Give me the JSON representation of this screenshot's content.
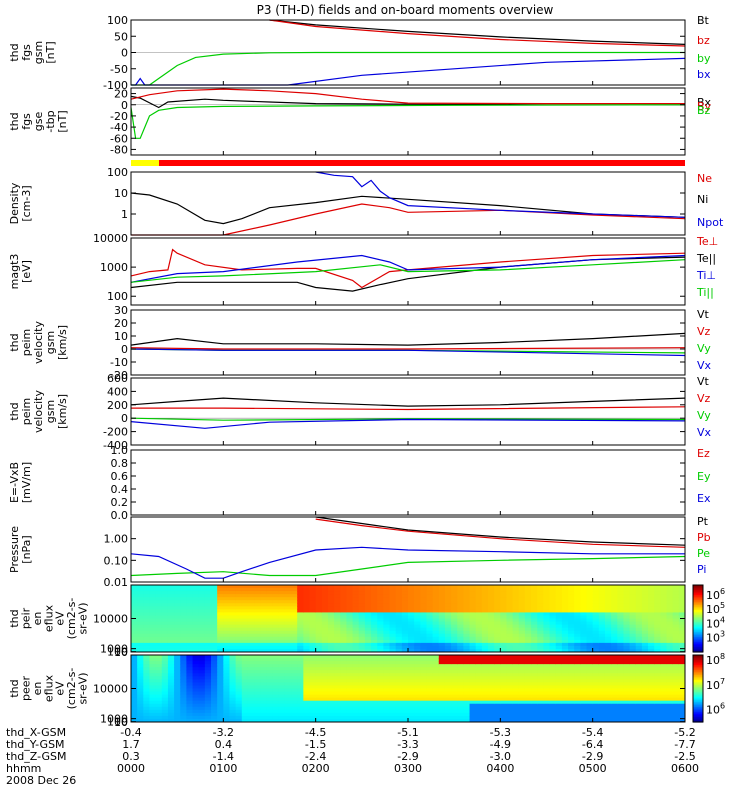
{
  "title": "P3 (TH-D) fields and on-board moments overview",
  "colors": {
    "black": "#000000",
    "red": "#dd0000",
    "green": "#00cc00",
    "blue": "#0000dd",
    "yellow": "#ffff00",
    "bar_red": "#ff0000"
  },
  "chart_data": [
    {
      "id": "fgs_gsm",
      "type": "line",
      "ylabel": [
        "thd",
        "fgs",
        "gsm",
        "[nT]"
      ],
      "ylim": [
        -100,
        100
      ],
      "yticks": [
        -100,
        -50,
        0,
        50,
        100
      ],
      "legend": [
        {
          "name": "Bt",
          "color": "black"
        },
        {
          "name": "bz",
          "color": "red"
        },
        {
          "name": "by",
          "color": "green"
        },
        {
          "name": "bx",
          "color": "blue"
        }
      ],
      "series": [
        {
          "name": "Bt",
          "color": "black",
          "x": [
            0.15,
            0.2,
            0.3,
            0.4,
            0.5,
            0.6
          ],
          "y": [
            100,
            85,
            65,
            48,
            35,
            25
          ]
        },
        {
          "name": "bz",
          "color": "red",
          "x": [
            0.15,
            0.2,
            0.3,
            0.4,
            0.5,
            0.6
          ],
          "y": [
            100,
            80,
            58,
            40,
            28,
            20
          ]
        },
        {
          "name": "by",
          "color": "green",
          "x": [
            0.0,
            0.02,
            0.03,
            0.05,
            0.07,
            0.1,
            0.15,
            0.2,
            0.3,
            0.45,
            0.6
          ],
          "y": [
            -100,
            -100,
            -80,
            -40,
            -15,
            -5,
            -1,
            0,
            0,
            0,
            0
          ]
        },
        {
          "name": "bx",
          "color": "blue",
          "x": [
            0.0,
            0.005,
            0.01,
            0.015,
            0.03,
            0.17,
            0.25,
            0.35,
            0.45,
            0.6
          ],
          "y": [
            -100,
            -100,
            -80,
            -100,
            -100,
            -100,
            -70,
            -50,
            -30,
            -18
          ]
        }
      ]
    },
    {
      "id": "fgs_gse",
      "type": "line",
      "ylabel": [
        "thd",
        "fgs",
        "gse",
        "-tbp",
        "[nT]"
      ],
      "ylim": [
        -90,
        30
      ],
      "yticks": [
        -80,
        -60,
        -40,
        -20,
        0,
        20
      ],
      "legend": [
        {
          "name": "Bx",
          "color": "black"
        },
        {
          "name": "By",
          "color": "red"
        },
        {
          "name": "Bz",
          "color": "green"
        }
      ],
      "series": [
        {
          "name": "Bx",
          "color": "black",
          "x": [
            0.0,
            0.01,
            0.03,
            0.04,
            0.08,
            0.1,
            0.15,
            0.2,
            0.3,
            0.45,
            0.6
          ],
          "y": [
            15,
            12,
            -5,
            5,
            10,
            8,
            5,
            2,
            1,
            0,
            0
          ]
        },
        {
          "name": "By",
          "color": "red",
          "x": [
            0.0,
            0.02,
            0.05,
            0.1,
            0.15,
            0.2,
            0.25,
            0.3,
            0.45,
            0.6
          ],
          "y": [
            10,
            18,
            25,
            28,
            25,
            20,
            10,
            3,
            2,
            2
          ]
        },
        {
          "name": "Bz",
          "color": "green",
          "x": [
            0.0,
            0.005,
            0.01,
            0.02,
            0.03,
            0.05,
            0.1,
            0.2,
            0.35,
            0.6
          ],
          "y": [
            -5,
            -60,
            -60,
            -20,
            -10,
            -5,
            -3,
            -2,
            -1,
            0
          ]
        }
      ]
    },
    {
      "id": "density",
      "type": "line",
      "log": true,
      "ylabel": [
        "Density",
        "[cm-3]"
      ],
      "ylim": [
        0.1,
        100
      ],
      "yticks": [
        0.1,
        1,
        10,
        100
      ],
      "ytick_labels": [
        "",
        "1",
        "10",
        "100"
      ],
      "legend": [
        {
          "name": "Ne",
          "color": "red"
        },
        {
          "name": "Ni",
          "color": "black"
        },
        {
          "name": "Npot",
          "color": "blue"
        }
      ],
      "series": [
        {
          "name": "Ni",
          "color": "black",
          "x": [
            0.0,
            0.02,
            0.05,
            0.08,
            0.1,
            0.12,
            0.15,
            0.2,
            0.25,
            0.3,
            0.4,
            0.5,
            0.6
          ],
          "y": [
            10,
            8,
            3,
            0.5,
            0.35,
            0.6,
            2,
            3.5,
            7,
            5,
            2.5,
            1,
            0.7
          ]
        },
        {
          "name": "Ne",
          "color": "red",
          "x": [
            0.0,
            0.02,
            0.05,
            0.1,
            0.15,
            0.2,
            0.25,
            0.28,
            0.3,
            0.4,
            0.5,
            0.6
          ],
          "y": [
            0.1,
            0.1,
            0.1,
            0.1,
            0.3,
            1,
            3,
            2,
            1.2,
            1.5,
            0.9,
            0.6
          ]
        },
        {
          "name": "Npot",
          "color": "blue",
          "x": [
            0.2,
            0.22,
            0.24,
            0.25,
            0.26,
            0.27,
            0.28,
            0.3,
            0.4,
            0.5,
            0.6
          ],
          "y": [
            100,
            70,
            60,
            20,
            40,
            12,
            6,
            2.5,
            1.5,
            1,
            0.7
          ]
        }
      ]
    },
    {
      "id": "temperature",
      "type": "line",
      "log": true,
      "ylabel": [
        "magt3",
        "[eV]"
      ],
      "ylim": [
        50,
        10000
      ],
      "yticks": [
        100,
        1000,
        10000
      ],
      "ytick_labels": [
        "100",
        "1000",
        "10000"
      ],
      "legend": [
        {
          "name": "Te⊥",
          "color": "red"
        },
        {
          "name": "Te||",
          "color": "black"
        },
        {
          "name": "Ti⊥",
          "color": "blue"
        },
        {
          "name": "Ti||",
          "color": "green"
        }
      ],
      "series": [
        {
          "name": "Te⊥",
          "color": "red",
          "x": [
            0.0,
            0.02,
            0.04,
            0.045,
            0.05,
            0.08,
            0.12,
            0.18,
            0.2,
            0.24,
            0.25,
            0.28,
            0.3,
            0.4,
            0.5,
            0.6
          ],
          "y": [
            500,
            700,
            800,
            4000,
            3000,
            1200,
            800,
            900,
            900,
            350,
            200,
            700,
            800,
            1500,
            2500,
            3000
          ]
        },
        {
          "name": "Te||",
          "color": "black",
          "x": [
            0.0,
            0.05,
            0.1,
            0.18,
            0.2,
            0.24,
            0.27,
            0.3,
            0.4,
            0.5,
            0.6
          ],
          "y": [
            200,
            300,
            300,
            300,
            200,
            150,
            250,
            400,
            1000,
            1800,
            2200
          ]
        },
        {
          "name": "Ti⊥",
          "color": "blue",
          "x": [
            0.0,
            0.05,
            0.1,
            0.18,
            0.25,
            0.28,
            0.3,
            0.4,
            0.5,
            0.6
          ],
          "y": [
            300,
            600,
            700,
            1500,
            2500,
            1500,
            800,
            1000,
            1800,
            2500
          ]
        },
        {
          "name": "Ti||",
          "color": "green",
          "x": [
            0.0,
            0.05,
            0.1,
            0.2,
            0.27,
            0.3,
            0.4,
            0.5,
            0.6
          ],
          "y": [
            300,
            450,
            500,
            700,
            1200,
            700,
            800,
            1200,
            1800
          ]
        }
      ]
    },
    {
      "id": "velocity_small",
      "type": "line",
      "ylabel": [
        "thd",
        "peim",
        "velocity",
        "gsm",
        "[km/s]"
      ],
      "ylim": [
        -20,
        30
      ],
      "yticks": [
        -20,
        -10,
        0,
        10,
        20,
        30
      ],
      "legend": [
        {
          "name": "Vt",
          "color": "black"
        },
        {
          "name": "Vz",
          "color": "red"
        },
        {
          "name": "Vy",
          "color": "green"
        },
        {
          "name": "Vx",
          "color": "blue"
        }
      ],
      "series": [
        {
          "name": "Vt",
          "color": "black",
          "x": [
            0.0,
            0.05,
            0.1,
            0.2,
            0.3,
            0.4,
            0.5,
            0.6
          ],
          "y": [
            3,
            8,
            4,
            4,
            3,
            5,
            8,
            12
          ]
        },
        {
          "name": "Vz",
          "color": "red",
          "x": [
            0.0,
            0.1,
            0.3,
            0.6
          ],
          "y": [
            1,
            0,
            0,
            1
          ]
        },
        {
          "name": "Vy",
          "color": "green",
          "x": [
            0.0,
            0.1,
            0.3,
            0.6
          ],
          "y": [
            0,
            -1,
            -1,
            -3
          ]
        },
        {
          "name": "Vx",
          "color": "blue",
          "x": [
            0.0,
            0.1,
            0.3,
            0.6
          ],
          "y": [
            0,
            -1,
            -1,
            -5
          ]
        }
      ]
    },
    {
      "id": "velocity_large",
      "type": "line",
      "ylabel": [
        "thd",
        "peim",
        "velocity",
        "gsm",
        "[km/s]"
      ],
      "ylim": [
        -400,
        600
      ],
      "yticks": [
        -400,
        -200,
        0,
        200,
        400,
        600
      ],
      "legend": [
        {
          "name": "Vt",
          "color": "black"
        },
        {
          "name": "Vz",
          "color": "red"
        },
        {
          "name": "Vy",
          "color": "green"
        },
        {
          "name": "Vx",
          "color": "blue"
        }
      ],
      "series": [
        {
          "name": "Vt",
          "color": "black",
          "x": [
            0.0,
            0.05,
            0.1,
            0.2,
            0.3,
            0.4,
            0.5,
            0.6
          ],
          "y": [
            200,
            250,
            300,
            230,
            180,
            200,
            250,
            300
          ]
        },
        {
          "name": "Vz",
          "color": "red",
          "x": [
            0.0,
            0.1,
            0.3,
            0.6
          ],
          "y": [
            150,
            150,
            130,
            170
          ]
        },
        {
          "name": "Vy",
          "color": "green",
          "x": [
            0.0,
            0.1,
            0.3,
            0.6
          ],
          "y": [
            0,
            -30,
            -10,
            -20
          ]
        },
        {
          "name": "Vx",
          "color": "blue",
          "x": [
            0.0,
            0.08,
            0.15,
            0.3,
            0.6
          ],
          "y": [
            -50,
            -150,
            -60,
            -20,
            -40
          ]
        }
      ]
    },
    {
      "id": "efield",
      "type": "line",
      "ylabel": [
        "E=-VxB",
        "[mV/m]"
      ],
      "ylim": [
        0.0,
        1.0
      ],
      "yticks": [
        0.0,
        0.2,
        0.4,
        0.6,
        0.8,
        1.0
      ],
      "ytick_labels": [
        "0.0",
        "0.2",
        "0.4",
        "0.6",
        "0.8",
        "1.0"
      ],
      "legend": [
        {
          "name": "Ez",
          "color": "red"
        },
        {
          "name": "Ey",
          "color": "green"
        },
        {
          "name": "Ex",
          "color": "blue"
        }
      ],
      "series": []
    },
    {
      "id": "pressure",
      "type": "line",
      "log": true,
      "ylabel": [
        "Pressure",
        "[nPa]"
      ],
      "ylim": [
        0.01,
        10
      ],
      "yticks": [
        0.01,
        0.1,
        1
      ],
      "ytick_labels": [
        "0.01",
        "0.10",
        "1.00"
      ],
      "legend": [
        {
          "name": "Pt",
          "color": "black"
        },
        {
          "name": "Pb",
          "color": "red"
        },
        {
          "name": "Pe",
          "color": "green"
        },
        {
          "name": "Pi",
          "color": "blue"
        }
      ],
      "series": [
        {
          "name": "Pt",
          "color": "black",
          "x": [
            0.2,
            0.25,
            0.3,
            0.4,
            0.5,
            0.6
          ],
          "y": [
            10,
            5,
            2.5,
            1.2,
            0.7,
            0.5
          ]
        },
        {
          "name": "Pb",
          "color": "red",
          "x": [
            0.2,
            0.25,
            0.3,
            0.4,
            0.5,
            0.6
          ],
          "y": [
            8,
            4,
            2.2,
            1,
            0.55,
            0.4
          ]
        },
        {
          "name": "Pe",
          "color": "green",
          "x": [
            0.0,
            0.05,
            0.1,
            0.15,
            0.2,
            0.25,
            0.3,
            0.4,
            0.5,
            0.6
          ],
          "y": [
            0.02,
            0.025,
            0.03,
            0.02,
            0.02,
            0.04,
            0.08,
            0.1,
            0.12,
            0.15
          ]
        },
        {
          "name": "Pi",
          "color": "blue",
          "x": [
            0.0,
            0.03,
            0.06,
            0.08,
            0.1,
            0.12,
            0.15,
            0.2,
            0.25,
            0.3,
            0.4,
            0.5,
            0.6
          ],
          "y": [
            0.2,
            0.15,
            0.04,
            0.015,
            0.015,
            0.03,
            0.08,
            0.3,
            0.4,
            0.3,
            0.25,
            0.2,
            0.2
          ]
        }
      ]
    },
    {
      "id": "ion_spectrogram",
      "type": "heatmap",
      "ylabel": [
        "thd",
        "peir",
        "en",
        "eflux",
        "eV",
        "(cm2-s-",
        "sr-eV)"
      ],
      "ylim": [
        5,
        20000
      ],
      "yticks": [
        10,
        100,
        1000,
        10000
      ],
      "ytick_labels": [
        "10",
        "100",
        "1000",
        "10000"
      ],
      "colorbar": {
        "min_exp": 2,
        "max_exp": 6.7,
        "labels": [
          "10^6",
          "10^5",
          "10^4",
          "10^3"
        ],
        "exps": [
          6,
          5,
          4,
          3
        ]
      }
    },
    {
      "id": "electron_spectrogram",
      "type": "heatmap",
      "ylabel": [
        "thd",
        "peer",
        "en",
        "eflux",
        "eV",
        "(cm2-s-",
        "sr-eV)"
      ],
      "ylim": [
        5,
        20000
      ],
      "yticks": [
        10,
        100,
        1000,
        10000
      ],
      "ytick_labels": [
        "10",
        "100",
        "1000",
        "10000"
      ],
      "colorbar": {
        "min_exp": 5.5,
        "max_exp": 8.2,
        "labels": [
          "10^8",
          "10^7",
          "10^6"
        ],
        "exps": [
          8,
          7,
          6
        ]
      }
    }
  ],
  "orbit_table": {
    "labels": [
      "thd_X-GSM",
      "thd_Y-GSM",
      "thd_Z-GSM",
      "hhmm",
      "2008 Dec 26"
    ],
    "rows": [
      [
        "-0.4",
        "-3.2",
        "-4.5",
        "-5.1",
        "-5.3",
        "-5.4",
        "-5.2"
      ],
      [
        "1.7",
        "0.4",
        "-1.5",
        "-3.3",
        "-4.9",
        "-6.4",
        "-7.7"
      ],
      [
        "0.3",
        "-1.4",
        "-2.4",
        "-2.9",
        "-3.0",
        "-2.9",
        "-2.5"
      ],
      [
        "0000",
        "0100",
        "0200",
        "0300",
        "0400",
        "0500",
        "0600"
      ]
    ]
  }
}
